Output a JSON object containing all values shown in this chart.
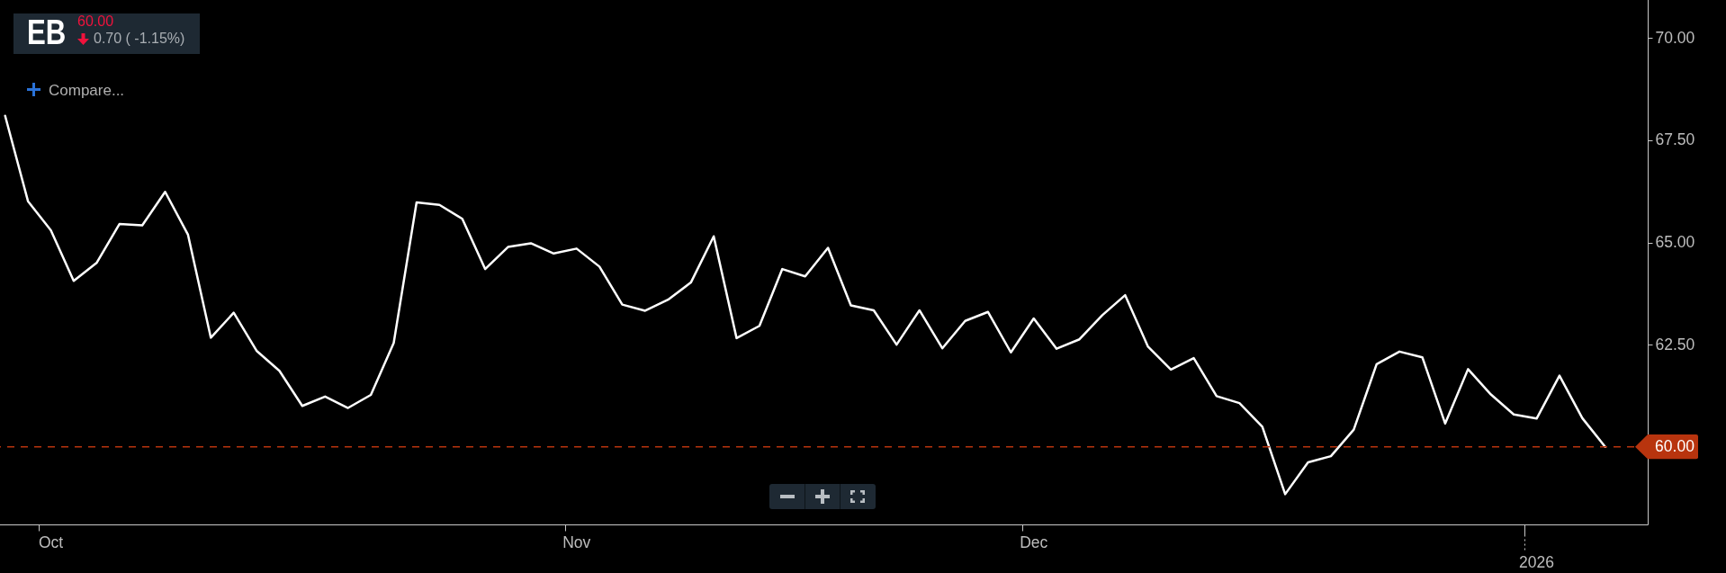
{
  "chart_data": {
    "type": "line",
    "title": "EB",
    "annotations": [
      "60.00",
      "0.70 ( -1.15%)",
      "Compare..."
    ],
    "categories": [
      null,
      null,
      "Oct",
      null,
      null,
      null,
      null,
      null,
      null,
      null,
      null,
      null,
      null,
      null,
      null,
      null,
      null,
      null,
      null,
      null,
      null,
      null,
      null,
      null,
      null,
      "Nov",
      null,
      null,
      null,
      null,
      null,
      null,
      null,
      null,
      null,
      null,
      null,
      null,
      null,
      null,
      null,
      null,
      null,
      null,
      null,
      "Dec",
      null,
      null,
      null,
      null,
      null,
      null,
      null,
      null,
      null,
      null,
      null,
      null,
      null,
      null,
      null,
      null,
      null,
      null,
      null,
      null,
      null,
      "2026",
      null,
      null,
      null
    ],
    "series": [
      {
        "color": "#ffffff",
        "values": [
          68.1,
          66.01,
          65.3,
          64.06,
          64.5,
          65.45,
          65.42,
          66.24,
          65.19,
          62.67,
          63.28,
          62.35,
          61.86,
          61.0,
          61.23,
          60.95,
          61.27,
          62.54,
          65.98,
          65.92,
          65.58,
          64.35,
          64.89,
          64.98,
          64.73,
          64.85,
          64.41,
          63.48,
          63.33,
          63.6,
          64.02,
          65.15,
          62.66,
          62.96,
          64.35,
          64.17,
          64.87,
          63.46,
          63.34,
          62.5,
          63.34,
          62.41,
          63.08,
          63.3,
          62.31,
          63.14,
          62.4,
          62.63,
          63.22,
          63.71,
          62.45,
          61.89,
          62.17,
          61.24,
          61.07,
          60.49,
          58.84,
          59.62,
          59.77,
          60.42,
          62.02,
          62.33,
          62.19,
          60.57,
          61.9,
          61.28,
          60.79,
          60.69,
          61.74,
          60.7,
          60.0
        ]
      }
    ],
    "ylim": [
      58.1,
      71
    ],
    "yticks": [
      {
        "value": 62.5,
        "label": "62.50"
      },
      {
        "value": 65,
        "label": "65.00"
      },
      {
        "value": 67.5,
        "label": "67.50"
      },
      {
        "value": 70,
        "label": "70.00"
      }
    ],
    "ref_lines": [
      {
        "axis": "y",
        "value": 60,
        "label": "60.00",
        "color": "#b8340e",
        "line_style": "dashed"
      }
    ]
  }
}
